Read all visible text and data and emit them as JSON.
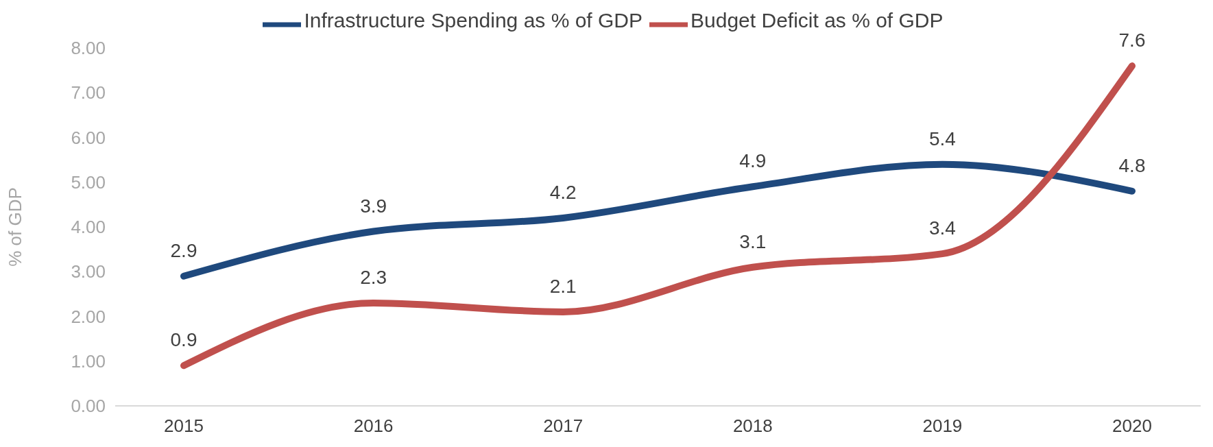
{
  "chart_data": {
    "type": "line",
    "ylabel": "% of GDP",
    "categories": [
      "2015",
      "2016",
      "2017",
      "2018",
      "2019",
      "2020"
    ],
    "series": [
      {
        "name": "Infrastructure Spending as % of GDP",
        "color": "#1f497d",
        "values": [
          2.9,
          3.9,
          4.2,
          4.9,
          5.4,
          4.8
        ]
      },
      {
        "name": "Budget Deficit as % of GDP",
        "color": "#c0504d",
        "values": [
          0.9,
          2.3,
          2.1,
          3.1,
          3.4,
          7.6
        ]
      }
    ],
    "ylim": [
      0,
      8
    ],
    "yticks": [
      {
        "value": 0,
        "label": "0.00"
      },
      {
        "value": 1,
        "label": "1.00"
      },
      {
        "value": 2,
        "label": "2.00"
      },
      {
        "value": 3,
        "label": "3.00"
      },
      {
        "value": 4,
        "label": "4.00"
      },
      {
        "value": 5,
        "label": "5.00"
      },
      {
        "value": 6,
        "label": "6.00"
      },
      {
        "value": 7,
        "label": "7.00"
      },
      {
        "value": 8,
        "label": "8.00"
      }
    ],
    "grid": false,
    "legend": "top",
    "marker": "none",
    "line_style": "solid",
    "data_labels": true
  }
}
